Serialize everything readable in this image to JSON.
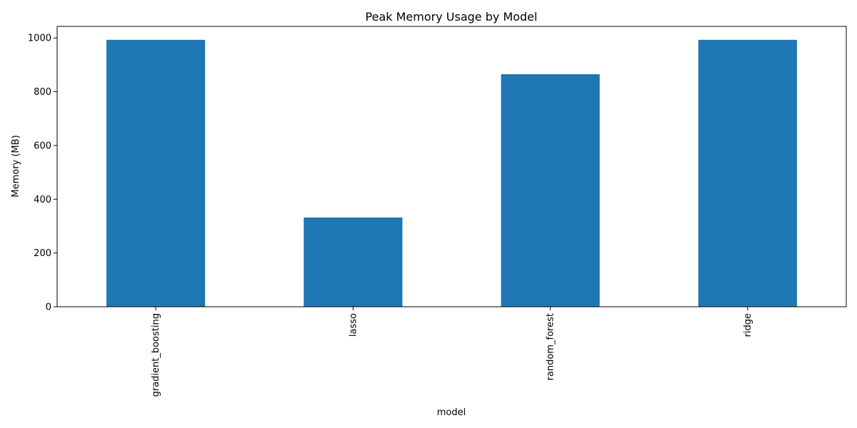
{
  "chart_data": {
    "type": "bar",
    "title": "Peak Memory Usage by Model",
    "xlabel": "model",
    "ylabel": "Memory (MB)",
    "categories": [
      "gradient_boosting",
      "lasso",
      "random_forest",
      "ridge"
    ],
    "values": [
      993,
      332,
      865,
      993
    ],
    "ylim": [
      0,
      1043
    ],
    "yticks": [
      0,
      200,
      400,
      600,
      800,
      1000
    ],
    "bar_color": "#1f77b4",
    "grid": false,
    "legend": "none"
  }
}
